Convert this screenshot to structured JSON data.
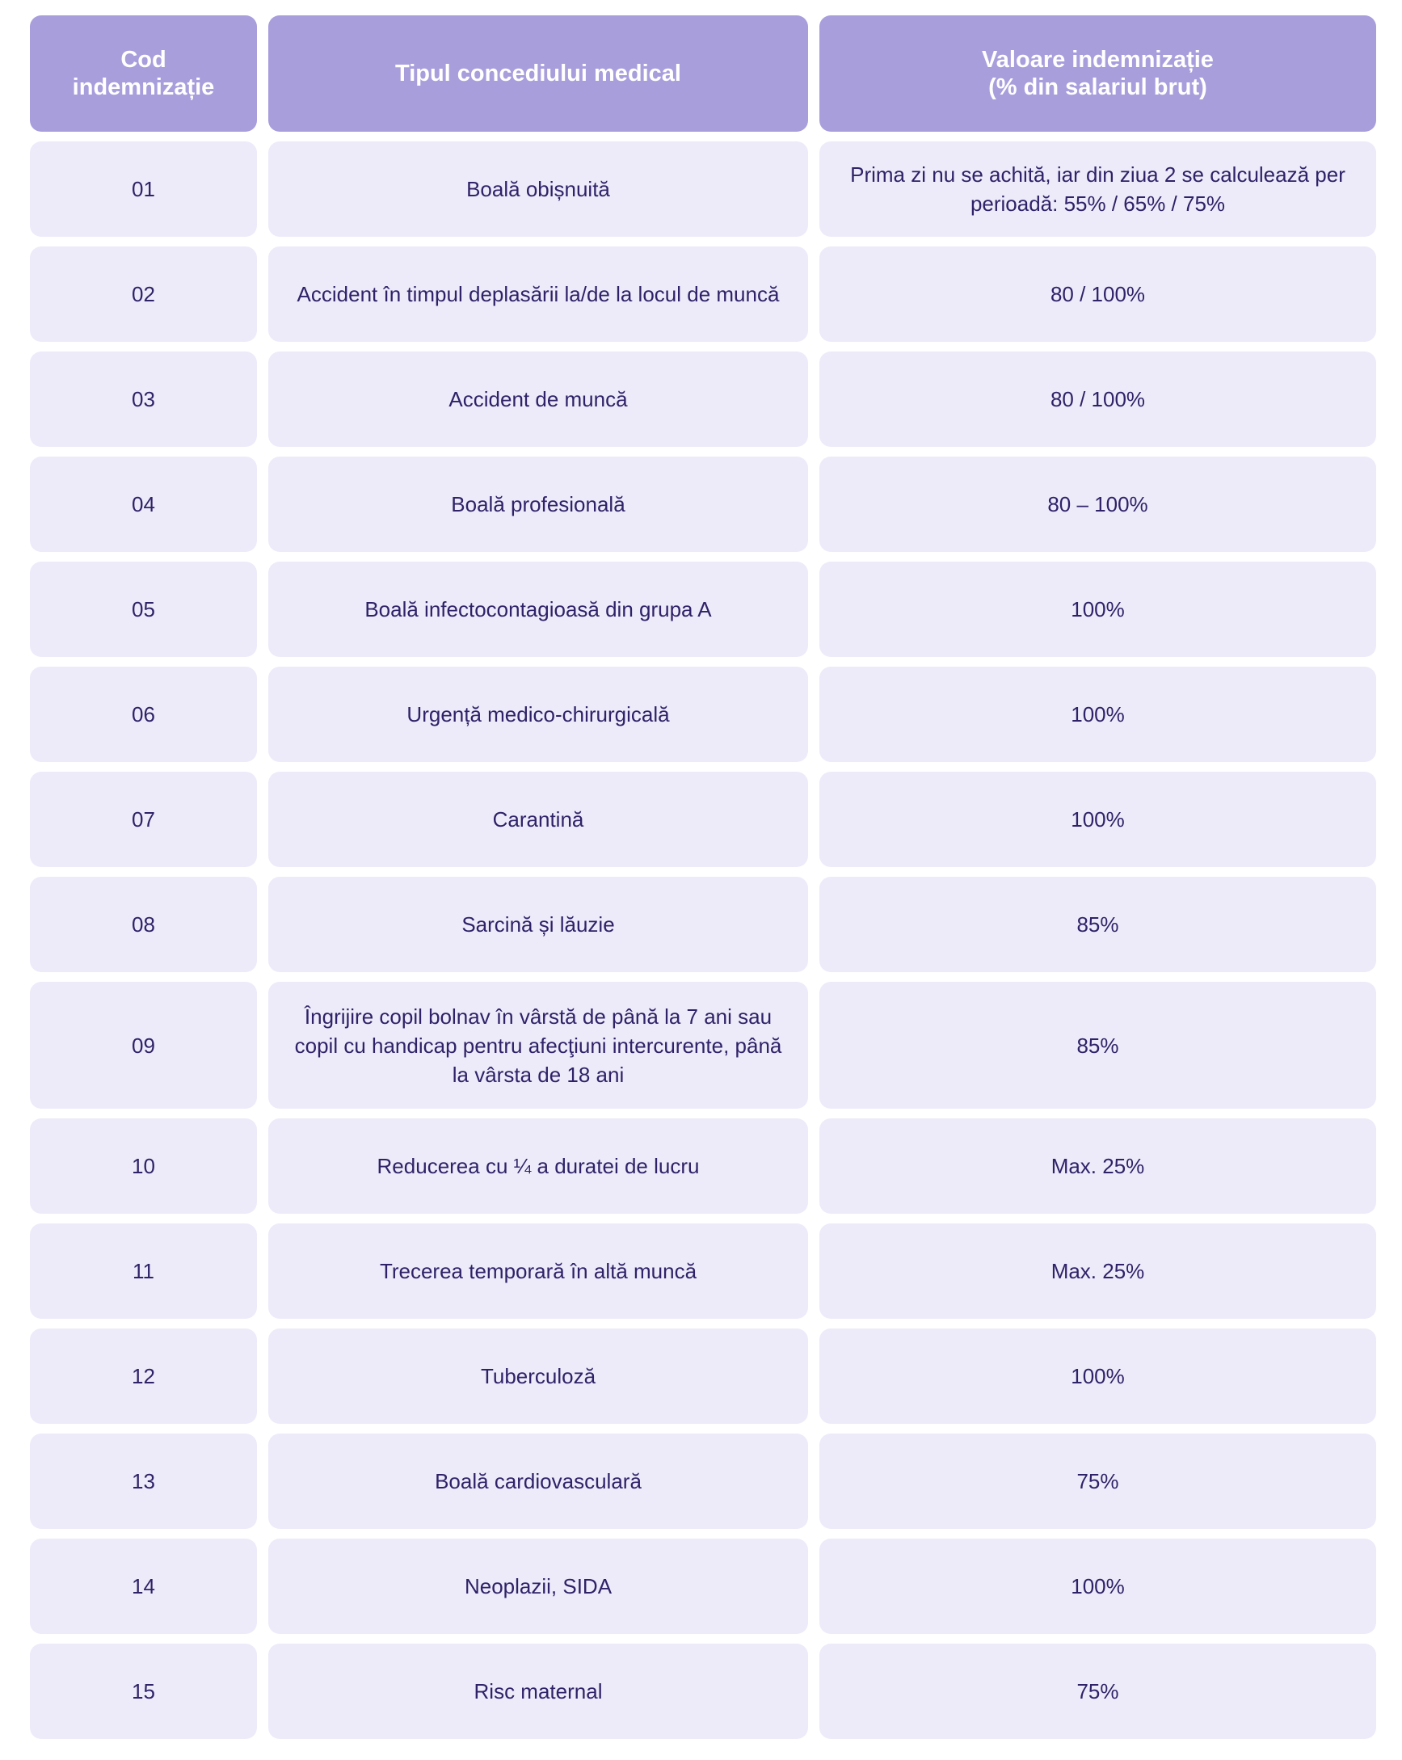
{
  "header": {
    "code": "Cod\nindemnizație",
    "type": "Tipul concediului medical",
    "value": "Valoare indemnizație\n(% din salariul brut)"
  },
  "colors": {
    "header_bg": "#a89edc",
    "cell_bg": "#edebf9",
    "text": "#2f2268"
  },
  "rows": [
    {
      "code": "01",
      "type": "Boală obișnuită",
      "value": "Prima zi nu se achită, iar din ziua 2 se calculează per perioadă: 55% / 65% / 75%"
    },
    {
      "code": "02",
      "type": "Accident în timpul deplasării la/de la locul de muncă",
      "value": "80 / 100%"
    },
    {
      "code": "03",
      "type": "Accident de muncă",
      "value": "80 / 100%"
    },
    {
      "code": "04",
      "type": "Boală profesională",
      "value": "80 – 100%"
    },
    {
      "code": "05",
      "type": "Boală infectocontagioasă din grupa A",
      "value": "100%"
    },
    {
      "code": "06",
      "type": "Urgență medico-chirurgicală",
      "value": "100%"
    },
    {
      "code": "07",
      "type": "Carantină",
      "value": "100%"
    },
    {
      "code": "08",
      "type": "Sarcină și lăuzie",
      "value": "85%"
    },
    {
      "code": "09",
      "type": "Îngrijire copil bolnav în vârstă de până la 7 ani sau copil cu handicap pentru afecţiuni intercurente, până la vârsta de 18 ani",
      "value": "85%"
    },
    {
      "code": "10",
      "type": "Reducerea cu ¼ a duratei de lucru",
      "value": "Max. 25%"
    },
    {
      "code": "11",
      "type": "Trecerea temporară în altă muncă",
      "value": "Max. 25%"
    },
    {
      "code": "12",
      "type": "Tuberculoză",
      "value": "100%"
    },
    {
      "code": "13",
      "type": "Boală cardiovasculară",
      "value": "75%"
    },
    {
      "code": "14",
      "type": "Neoplazii, SIDA",
      "value": "100%"
    },
    {
      "code": "15",
      "type": "Risc maternal",
      "value": "75%"
    }
  ]
}
